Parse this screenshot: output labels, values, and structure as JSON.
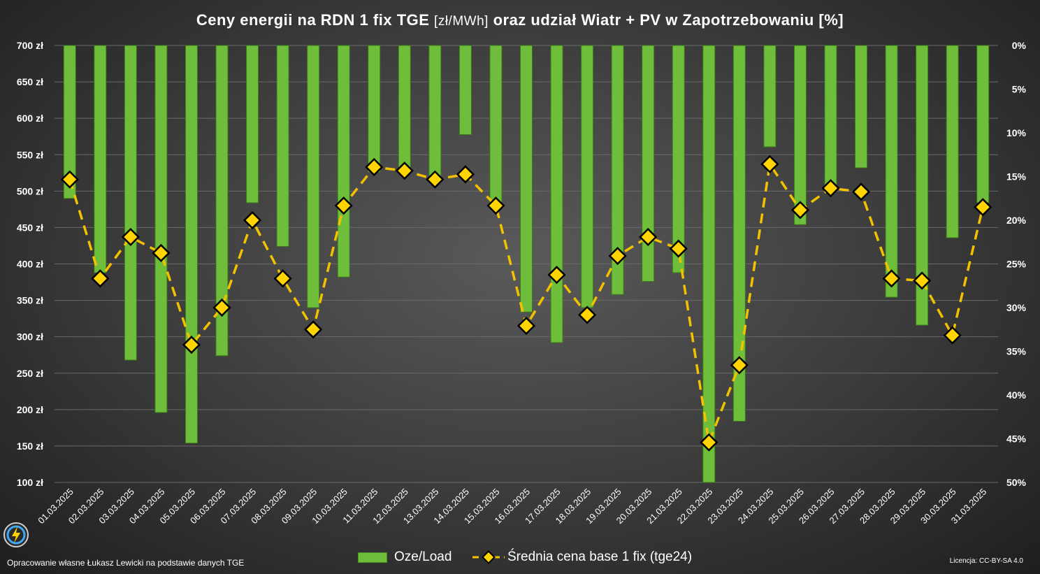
{
  "title": "Ceny energii na RDN 1 fix TGE",
  "title_unit": "[zł/MWh]",
  "title_rest": "oraz udział Wiatr + PV w Zapotrzebowaniu [%]",
  "footer_left": "Opracowanie własne Łukasz Lewicki na podstawie danych TGE",
  "footer_right": "Licencja: CC-BY-SA 4.0",
  "logo_icon": "energy-bolt-logo-icon",
  "colors": {
    "bar": "#6fbe3b",
    "line": "#f2c200",
    "marker": "#ffd400"
  },
  "chart_data": {
    "type": "bar+line",
    "categories": [
      "01.03.2025",
      "02.03.2025",
      "03.03.2025",
      "04.03.2025",
      "05.03.2025",
      "06.03.2025",
      "07.03.2025",
      "08.03.2025",
      "09.03.2025",
      "10.03.2025",
      "11.03.2025",
      "12.03.2025",
      "13.03.2025",
      "14.03.2025",
      "15.03.2025",
      "16.03.2025",
      "17.03.2025",
      "18.03.2025",
      "19.03.2025",
      "20.03.2025",
      "21.03.2025",
      "22.03.2025",
      "23.03.2025",
      "24.03.2025",
      "25.03.2025",
      "26.03.2025",
      "27.03.2025",
      "28.03.2025",
      "29.03.2025",
      "30.03.2025",
      "31.03.2025"
    ],
    "left_axis": {
      "ticks": [
        "100 zł",
        "150 zł",
        "200 zł",
        "250 zł",
        "300 zł",
        "350 zł",
        "400 zł",
        "450 zł",
        "500 zł",
        "550 zł",
        "600 zł",
        "650 zł",
        "700 zł"
      ],
      "range": [
        100,
        700
      ]
    },
    "right_axis": {
      "ticks": [
        "0%",
        "5%",
        "10%",
        "15%",
        "20%",
        "25%",
        "30%",
        "35%",
        "40%",
        "45%",
        "50%"
      ],
      "range": [
        0,
        50
      ],
      "inverted": true
    },
    "grid": true,
    "legend_position": "bottom",
    "series": [
      {
        "name": "Oze/Load",
        "type": "bar",
        "axis": "right",
        "values": [
          17.5,
          26,
          36,
          42,
          45.5,
          35.5,
          18,
          23,
          30,
          26.5,
          14.5,
          14,
          15.5,
          10.2,
          18.5,
          30.5,
          34,
          30,
          28.5,
          27,
          26,
          50,
          43,
          11.6,
          20.5,
          16.5,
          14,
          28.8,
          32,
          22,
          18
        ]
      },
      {
        "name": "Średnia cena base 1 fix (tge24)",
        "type": "line",
        "axis": "left",
        "values": [
          516,
          380,
          437,
          415,
          289,
          340,
          460,
          380,
          310,
          480,
          533,
          528,
          516,
          523,
          480,
          315,
          385,
          330,
          411,
          437,
          421,
          155,
          261,
          537,
          474,
          504,
          499,
          380,
          377,
          302,
          478
        ]
      }
    ]
  }
}
